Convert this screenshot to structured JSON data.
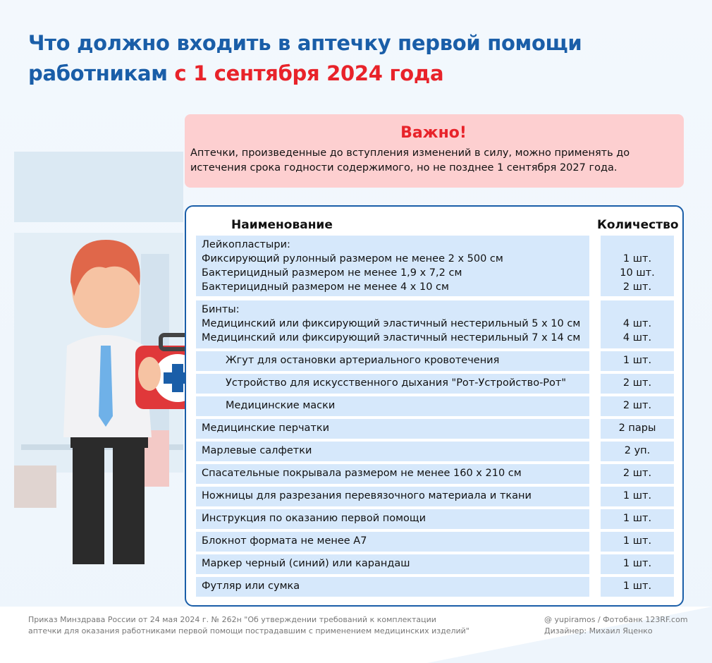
{
  "title": {
    "line1": "Что должно входить в аптечку первой помощи",
    "line2_part1": "работникам ",
    "line2_part2": "с 1 сентября 2024 года"
  },
  "alert": {
    "heading": "Важно!",
    "text": "Аптечки, произведенные до вступления изменений в силу, можно применять до истечения срока годности содержимого, но не позднее 1 сентября 2027 года."
  },
  "table": {
    "headers": {
      "name": "Наименование",
      "qty": "Количество"
    },
    "groups": [
      {
        "title": "Лейкопластыри:",
        "items": [
          {
            "name": "Фиксирующий рулонный размером не менее 2 х 500 см",
            "qty": "1 шт."
          },
          {
            "name": "Бактерицидный размером не менее 1,9 х 7,2 см",
            "qty": "10 шт."
          },
          {
            "name": "Бактерицидный размером не менее 4 х 10 см",
            "qty": "2 шт."
          }
        ]
      },
      {
        "title": "Бинты:",
        "items": [
          {
            "name": "Медицинский или фиксирующий эластичный нестерильный 5 х 10 см",
            "qty": "4 шт."
          },
          {
            "name": "Медицинский или фиксирующий эластичный нестерильный 7 х 14 см",
            "qty": "4 шт."
          }
        ]
      }
    ],
    "rows": [
      {
        "name": "Жгут для остановки артериального кровотечения",
        "qty": "1 шт."
      },
      {
        "name": "Устройство для искусственного дыхания \"Рот-Устройство-Рот\"",
        "qty": "2 шт."
      },
      {
        "name": "Медицинские маски",
        "qty": "2 шт."
      },
      {
        "name": "Медицинские перчатки",
        "qty": "2 пары"
      },
      {
        "name": "Марлевые салфетки",
        "qty": "2 уп."
      },
      {
        "name": "Спасательные покрывала размером не менее 160 х 210 см",
        "qty": "2 шт."
      },
      {
        "name": "Ножницы для разрезания перевязочного материала и ткани",
        "qty": "1 шт."
      },
      {
        "name": "Инструкция по оказанию первой помощи",
        "qty": "1 шт."
      },
      {
        "name": "Блокнот формата не менее А7",
        "qty": "1 шт."
      },
      {
        "name": "Маркер черный (синий) или карандаш",
        "qty": "1 шт."
      },
      {
        "name": "Футляр или сумка",
        "qty": "1 шт."
      }
    ]
  },
  "footer": {
    "source_line1": "Приказ Минздрава России от 24 мая 2024 г. № 262н \"Об утверждении требований к комплектации",
    "source_line2": "аптечки для оказания работниками первой помощи пострадавшим с применением медицинских изделий\"",
    "credit_line1": "@ yupiramos  /  Фотобанк 123RF.com",
    "credit_line2": "Дизайнер:  Михаил Яценко"
  },
  "colors": {
    "title_blue": "#1a5ea8",
    "accent_red": "#e8232a",
    "alert_bg": "#fdcfd0",
    "row_bg": "#d6e8fb"
  }
}
